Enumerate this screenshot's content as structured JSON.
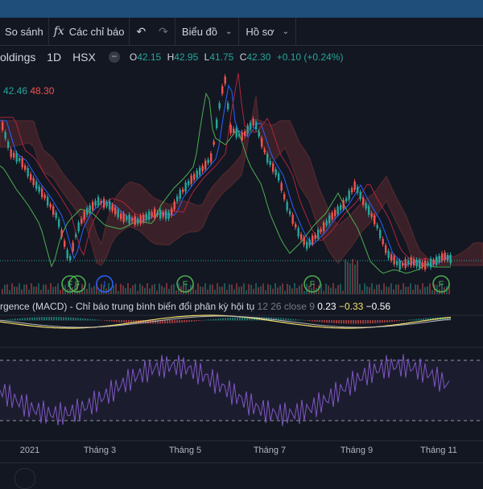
{
  "toolbar": {
    "compare_label": "So sánh",
    "indicators_icon": "fx",
    "indicators_label": "Các chỉ báo",
    "undo_icon": "↶",
    "redo_icon": "↷",
    "chart_label": "Biểu đồ",
    "profile_label": "Hồ sơ"
  },
  "symbol": {
    "name": "oldings",
    "interval": "1D",
    "exchange": "HSX",
    "ohlc": {
      "o_label": "O",
      "o": "42.15",
      "h_label": "H",
      "h": "42.95",
      "l_label": "L",
      "l": "41.75",
      "c_label": "C",
      "c": "42.30",
      "change": "+0.10 (+0.24%)"
    }
  },
  "indicator": {
    "v1": "42.46",
    "v2": "48.30"
  },
  "macd": {
    "title": "rgence (MACD) - Chỉ báo trung bình biến đổi phân kỳ hội tụ",
    "params": "12 26 close 9",
    "v1": "0.23",
    "v2": "−0.33",
    "v3": "−0.56"
  },
  "markers": [
    {
      "label": "F",
      "color": "#4caf50"
    },
    {
      "label": "F",
      "color": "#4caf50"
    },
    {
      "label": "I",
      "color": "#2962ff"
    },
    {
      "label": "F",
      "color": "#4caf50"
    },
    {
      "label": "F",
      "color": "#4caf50"
    },
    {
      "label": "F",
      "color": "#4caf50"
    }
  ],
  "xaxis": {
    "labels": [
      "2021",
      "Tháng 3",
      "Tháng 5",
      "Tháng 7",
      "Tháng 9",
      "Tháng 11"
    ]
  },
  "colors": {
    "up": "#26a69a",
    "down": "#ef5350",
    "rsi": "#7e57c2",
    "macd": "#f7e26b"
  }
}
